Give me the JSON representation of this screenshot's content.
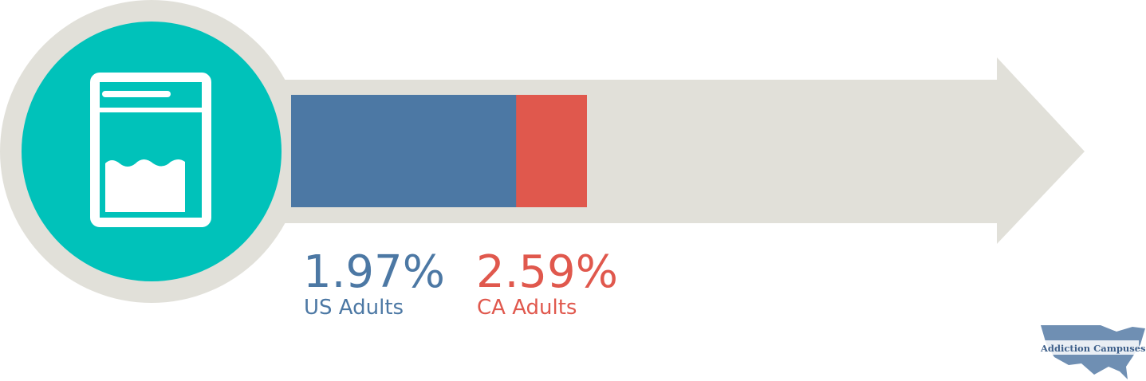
{
  "chart_data": {
    "type": "bar",
    "categories": [
      "US Adults",
      "CA Adults"
    ],
    "values": [
      1.97,
      2.59
    ],
    "value_labels": [
      "1.97%",
      "2.59%"
    ],
    "colors": [
      "#4c78a4",
      "#e0584d"
    ],
    "brand": "Addiction Campuses"
  }
}
